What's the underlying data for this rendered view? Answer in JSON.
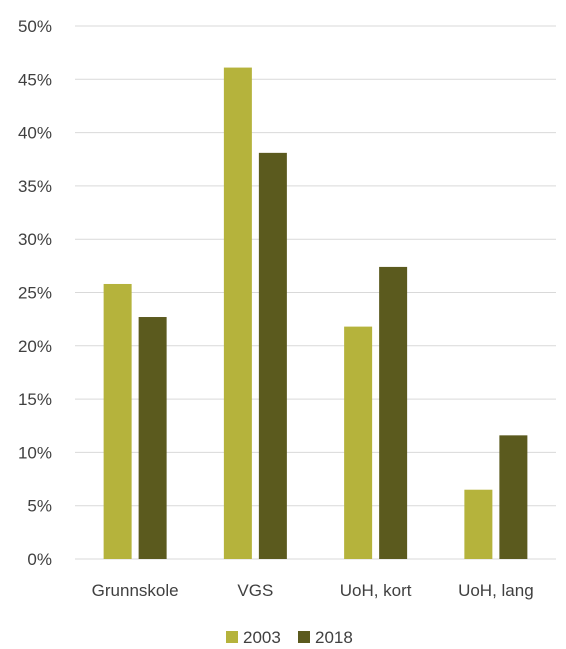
{
  "chart_data": {
    "type": "bar",
    "title": "",
    "xlabel": "",
    "ylabel": "",
    "categories": [
      "Grunnskole",
      "VGS",
      "UoH, kort",
      "UoH, lang"
    ],
    "series": [
      {
        "name": "2003",
        "color": "#b5b33c",
        "values": [
          25.8,
          46.1,
          21.8,
          6.5
        ]
      },
      {
        "name": "2018",
        "color": "#5b5a1e",
        "values": [
          22.7,
          38.1,
          27.4,
          11.6
        ]
      }
    ],
    "ylim": [
      0,
      50
    ],
    "yticks": [
      0,
      5,
      10,
      15,
      20,
      25,
      30,
      35,
      40,
      45,
      50
    ],
    "ytick_labels": [
      "0%",
      "5%",
      "10%",
      "15%",
      "20%",
      "25%",
      "30%",
      "35%",
      "40%",
      "45%",
      "50%"
    ],
    "grid": true,
    "legend_position": "bottom"
  }
}
